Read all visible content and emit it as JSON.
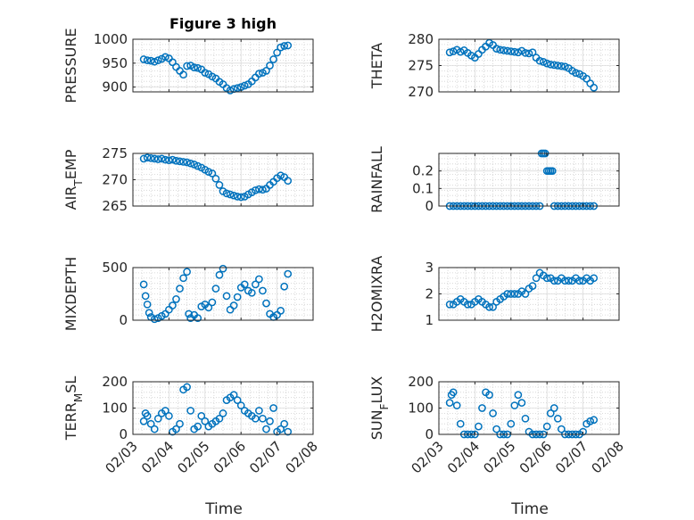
{
  "figure": {
    "title": "Figure 3 high",
    "marker_color": "#0072BD",
    "x_label": "Time"
  },
  "chart_data": [
    {
      "type": "scatter",
      "ylabel": "PRESSURE",
      "ylabel_sub": null,
      "ylim": [
        890,
        1000
      ],
      "yticks": [
        900,
        950,
        1000
      ],
      "x": [
        3.3,
        3.4,
        3.5,
        3.6,
        3.7,
        3.8,
        3.9,
        4.0,
        4.1,
        4.2,
        4.3,
        4.4,
        4.5,
        4.6,
        4.7,
        4.8,
        4.9,
        5.0,
        5.1,
        5.2,
        5.3,
        5.4,
        5.5,
        5.6,
        5.7,
        5.8,
        5.9,
        6.0,
        6.1,
        6.2,
        6.3,
        6.4,
        6.5,
        6.6,
        6.7,
        6.8,
        6.9,
        7.0,
        7.1,
        7.2,
        7.3
      ],
      "y": [
        958,
        956,
        955,
        953,
        956,
        959,
        963,
        960,
        952,
        942,
        934,
        926,
        944,
        945,
        941,
        940,
        937,
        930,
        927,
        922,
        918,
        911,
        906,
        898,
        893,
        896,
        898,
        900,
        903,
        906,
        912,
        920,
        928,
        930,
        934,
        945,
        958,
        972,
        983,
        986,
        987
      ]
    },
    {
      "type": "scatter",
      "ylabel": "THETA",
      "ylabel_sub": null,
      "ylim": [
        270,
        280
      ],
      "yticks": [
        270,
        275,
        280
      ],
      "x": [
        3.3,
        3.4,
        3.5,
        3.6,
        3.7,
        3.8,
        3.9,
        4.0,
        4.1,
        4.2,
        4.3,
        4.4,
        4.5,
        4.6,
        4.7,
        4.8,
        4.9,
        5.0,
        5.1,
        5.2,
        5.3,
        5.4,
        5.5,
        5.6,
        5.7,
        5.8,
        5.9,
        6.0,
        6.1,
        6.2,
        6.3,
        6.4,
        6.5,
        6.6,
        6.7,
        6.8,
        6.9,
        7.0,
        7.1,
        7.2,
        7.3
      ],
      "y": [
        277.5,
        277.7,
        278.0,
        277.6,
        277.9,
        277.4,
        276.9,
        276.5,
        277.2,
        278.0,
        278.6,
        279.3,
        278.9,
        278.2,
        278.0,
        277.9,
        277.8,
        277.7,
        277.6,
        277.5,
        277.8,
        277.4,
        277.3,
        277.5,
        276.5,
        275.9,
        275.7,
        275.4,
        275.2,
        275.1,
        275.0,
        274.9,
        274.8,
        274.5,
        274.0,
        273.6,
        273.4,
        273.0,
        272.5,
        271.6,
        270.8
      ]
    },
    {
      "type": "scatter",
      "ylabel": "AIR",
      "ylabel_sub": "T",
      "ylabel_suffix": "EMP",
      "ylim": [
        265,
        275
      ],
      "yticks": [
        265,
        270,
        275
      ],
      "x": [
        3.3,
        3.4,
        3.5,
        3.6,
        3.7,
        3.8,
        3.9,
        4.0,
        4.1,
        4.2,
        4.3,
        4.4,
        4.5,
        4.6,
        4.7,
        4.8,
        4.9,
        5.0,
        5.1,
        5.2,
        5.3,
        5.4,
        5.5,
        5.6,
        5.7,
        5.8,
        5.9,
        6.0,
        6.1,
        6.2,
        6.3,
        6.4,
        6.5,
        6.6,
        6.7,
        6.8,
        6.9,
        7.0,
        7.1,
        7.2,
        7.3
      ],
      "y": [
        274.0,
        274.2,
        274.1,
        274.0,
        273.9,
        274.0,
        273.8,
        273.7,
        273.8,
        273.6,
        273.5,
        273.4,
        273.3,
        273.1,
        272.9,
        272.6,
        272.3,
        271.9,
        271.5,
        271.2,
        270.2,
        269.0,
        267.8,
        267.4,
        267.2,
        267.0,
        266.8,
        266.7,
        266.8,
        267.2,
        267.6,
        268.0,
        268.2,
        268.1,
        268.3,
        269.0,
        269.6,
        270.3,
        270.8,
        270.5,
        269.8
      ]
    },
    {
      "type": "scatter",
      "ylabel": "RAINFALL",
      "ylabel_sub": null,
      "ylim": [
        0,
        0.3
      ],
      "yticks": [
        0,
        0.1,
        0.2
      ],
      "x": [
        3.3,
        3.4,
        3.5,
        3.6,
        3.7,
        3.8,
        3.9,
        4.0,
        4.1,
        4.2,
        4.3,
        4.4,
        4.5,
        4.6,
        4.7,
        4.8,
        4.9,
        5.0,
        5.1,
        5.2,
        5.3,
        5.4,
        5.5,
        5.6,
        5.7,
        5.8,
        5.85,
        5.9,
        5.95,
        6.0,
        6.05,
        6.1,
        6.15,
        6.2,
        6.3,
        6.4,
        6.5,
        6.6,
        6.7,
        6.8,
        6.9,
        7.0,
        7.1,
        7.2,
        7.3
      ],
      "y": [
        0,
        0,
        0,
        0,
        0,
        0,
        0,
        0,
        0,
        0,
        0,
        0,
        0,
        0,
        0,
        0,
        0,
        0,
        0,
        0,
        0,
        0,
        0,
        0,
        0,
        0,
        0.3,
        0.3,
        0.3,
        0.2,
        0.2,
        0.2,
        0.2,
        0,
        0,
        0,
        0,
        0,
        0,
        0,
        0,
        0,
        0,
        0,
        0
      ]
    },
    {
      "type": "scatter",
      "ylabel": "MIXDEPTH",
      "ylabel_sub": null,
      "ylim": [
        0,
        500
      ],
      "yticks": [
        0,
        500
      ],
      "x": [
        3.3,
        3.35,
        3.4,
        3.45,
        3.5,
        3.6,
        3.7,
        3.8,
        3.9,
        4.0,
        4.1,
        4.2,
        4.3,
        4.4,
        4.5,
        4.55,
        4.6,
        4.7,
        4.8,
        4.9,
        5.0,
        5.1,
        5.2,
        5.3,
        5.4,
        5.5,
        5.6,
        5.7,
        5.8,
        5.9,
        6.0,
        6.1,
        6.2,
        6.3,
        6.4,
        6.5,
        6.6,
        6.7,
        6.8,
        6.9,
        7.0,
        7.1,
        7.2,
        7.3
      ],
      "y": [
        340,
        230,
        150,
        70,
        30,
        10,
        20,
        40,
        60,
        100,
        140,
        200,
        300,
        400,
        460,
        60,
        20,
        50,
        20,
        130,
        150,
        120,
        170,
        300,
        430,
        490,
        230,
        100,
        140,
        220,
        310,
        340,
        280,
        260,
        340,
        390,
        280,
        160,
        60,
        30,
        50,
        90,
        320,
        440
      ]
    },
    {
      "type": "scatter",
      "ylabel": "H2OMIXRA",
      "ylabel_sub": null,
      "ylim": [
        1,
        3
      ],
      "yticks": [
        1,
        2,
        3
      ],
      "x": [
        3.3,
        3.4,
        3.5,
        3.6,
        3.7,
        3.8,
        3.9,
        4.0,
        4.1,
        4.2,
        4.3,
        4.4,
        4.5,
        4.6,
        4.7,
        4.8,
        4.9,
        5.0,
        5.1,
        5.2,
        5.3,
        5.4,
        5.5,
        5.6,
        5.7,
        5.8,
        5.9,
        6.0,
        6.1,
        6.2,
        6.3,
        6.4,
        6.5,
        6.6,
        6.7,
        6.8,
        6.9,
        7.0,
        7.1,
        7.2,
        7.3
      ],
      "y": [
        1.6,
        1.6,
        1.7,
        1.8,
        1.7,
        1.6,
        1.6,
        1.7,
        1.8,
        1.7,
        1.6,
        1.5,
        1.5,
        1.7,
        1.8,
        1.9,
        2.0,
        2.0,
        2.0,
        2.0,
        2.1,
        2.0,
        2.2,
        2.3,
        2.6,
        2.8,
        2.7,
        2.6,
        2.6,
        2.5,
        2.5,
        2.6,
        2.5,
        2.5,
        2.5,
        2.6,
        2.5,
        2.5,
        2.6,
        2.5,
        2.6
      ]
    },
    {
      "type": "scatter",
      "ylabel": "TERR",
      "ylabel_sub": "M",
      "ylabel_suffix": "SL",
      "ylim": [
        0,
        200
      ],
      "yticks": [
        0,
        100,
        200
      ],
      "x": [
        3.3,
        3.35,
        3.4,
        3.5,
        3.6,
        3.7,
        3.8,
        3.9,
        4.0,
        4.1,
        4.2,
        4.3,
        4.4,
        4.5,
        4.6,
        4.7,
        4.8,
        4.9,
        5.0,
        5.1,
        5.2,
        5.3,
        5.4,
        5.5,
        5.6,
        5.7,
        5.8,
        5.9,
        6.0,
        6.1,
        6.2,
        6.3,
        6.4,
        6.5,
        6.6,
        6.7,
        6.8,
        6.9,
        7.0,
        7.1,
        7.2,
        7.3
      ],
      "y": [
        50,
        80,
        70,
        40,
        20,
        60,
        80,
        90,
        70,
        10,
        20,
        40,
        170,
        180,
        90,
        20,
        30,
        70,
        50,
        30,
        40,
        50,
        60,
        80,
        130,
        140,
        150,
        130,
        110,
        90,
        80,
        70,
        60,
        90,
        60,
        20,
        50,
        100,
        10,
        20,
        40,
        10
      ]
    },
    {
      "type": "scatter",
      "ylabel": "SUN",
      "ylabel_sub": "F",
      "ylabel_suffix": "LUX",
      "ylim": [
        0,
        200
      ],
      "yticks": [
        0,
        100,
        200
      ],
      "x": [
        3.3,
        3.35,
        3.4,
        3.5,
        3.6,
        3.7,
        3.8,
        3.9,
        4.0,
        4.1,
        4.2,
        4.3,
        4.4,
        4.5,
        4.6,
        4.7,
        4.8,
        4.9,
        5.0,
        5.1,
        5.2,
        5.3,
        5.4,
        5.5,
        5.6,
        5.7,
        5.8,
        5.9,
        6.0,
        6.1,
        6.2,
        6.3,
        6.4,
        6.5,
        6.6,
        6.7,
        6.8,
        6.9,
        7.0,
        7.1,
        7.2,
        7.3
      ],
      "y": [
        120,
        150,
        160,
        110,
        40,
        0,
        0,
        0,
        0,
        30,
        100,
        160,
        150,
        80,
        20,
        0,
        0,
        0,
        40,
        110,
        150,
        120,
        60,
        10,
        0,
        0,
        0,
        0,
        30,
        80,
        100,
        60,
        20,
        0,
        0,
        0,
        0,
        0,
        10,
        40,
        50,
        55
      ]
    }
  ],
  "x_axis": {
    "xlim": [
      3.0,
      8.0
    ],
    "tick_values": [
      3,
      4,
      5,
      6,
      7,
      8
    ],
    "tick_labels": [
      "02/03",
      "02/04",
      "02/05",
      "02/06",
      "02/07",
      "02/08"
    ]
  }
}
